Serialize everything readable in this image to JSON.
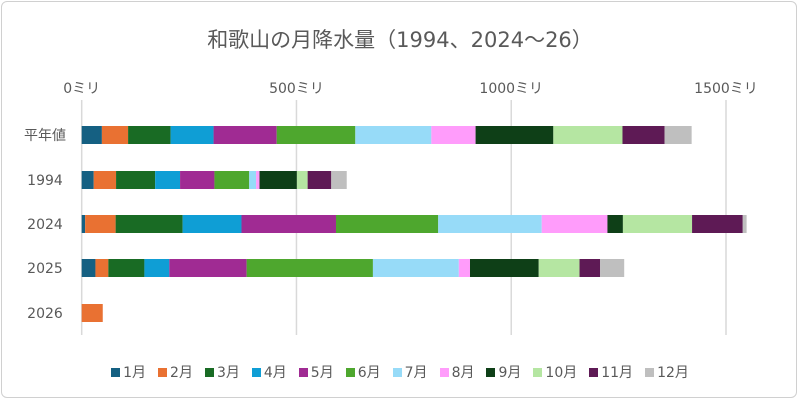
{
  "chart_data": {
    "type": "bar",
    "orientation": "horizontal",
    "stacked": true,
    "title": "和歌山の月降水量（1994、2024～26）",
    "categories": [
      "平年値",
      "1994",
      "2024",
      "2025",
      "2026"
    ],
    "xlim": [
      0,
      1500
    ],
    "x_ticks": [
      0,
      500,
      1000,
      1500
    ],
    "x_tick_labels": [
      "0ミリ",
      "500ミリ",
      "1000ミリ",
      "1500ミリ"
    ],
    "x_axis_position": "top",
    "grid": true,
    "legend_position": "bottom",
    "series": [
      {
        "name": "1月",
        "color": "#156082",
        "values": [
          47,
          28,
          8,
          32,
          0
        ]
      },
      {
        "name": "2月",
        "color": "#E97132",
        "values": [
          61,
          52,
          71,
          30,
          49
        ]
      },
      {
        "name": "3月",
        "color": "#196B24",
        "values": [
          99,
          91,
          156,
          84,
          null
        ]
      },
      {
        "name": "4月",
        "color": "#0F9ED5",
        "values": [
          100,
          58,
          137,
          58,
          null
        ]
      },
      {
        "name": "5月",
        "color": "#A02B93",
        "values": [
          147,
          80,
          220,
          180,
          null
        ]
      },
      {
        "name": "6月",
        "color": "#4EA72E",
        "values": [
          183,
          81,
          238,
          294,
          null
        ]
      },
      {
        "name": "7月",
        "color": "#97DBF8",
        "values": [
          177,
          16,
          241,
          200,
          null
        ]
      },
      {
        "name": "8月",
        "color": "#FF9CFB",
        "values": [
          103,
          8,
          153,
          26,
          null
        ]
      },
      {
        "name": "9月",
        "color": "#0E3F17",
        "values": [
          181,
          87,
          36,
          160,
          null
        ]
      },
      {
        "name": "10月",
        "color": "#B5E6A2",
        "values": [
          161,
          25,
          161,
          95,
          null
        ]
      },
      {
        "name": "11月",
        "color": "#5E1A55",
        "values": [
          98,
          55,
          118,
          48,
          null
        ]
      },
      {
        "name": "12月",
        "color": "#BFBFBF",
        "values": [
          63,
          36,
          9,
          56,
          null
        ]
      }
    ]
  }
}
